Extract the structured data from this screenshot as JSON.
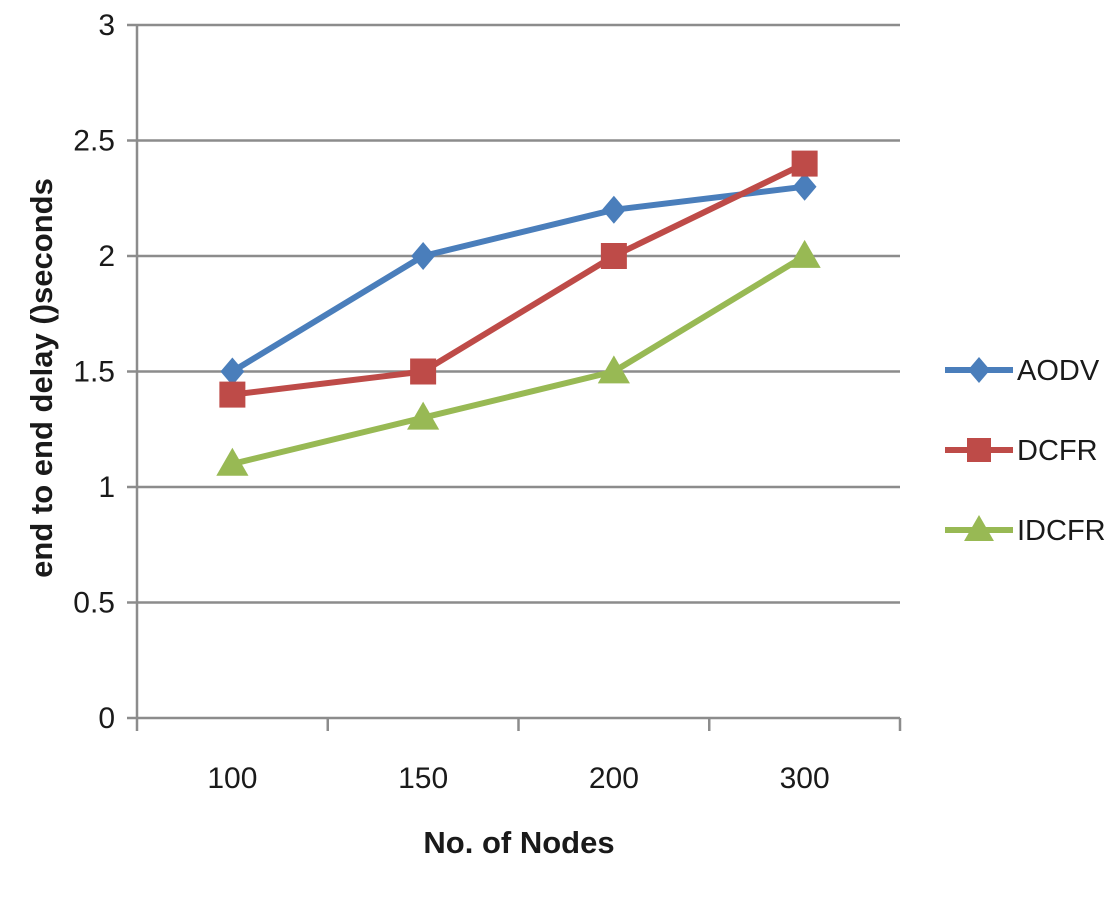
{
  "chart_data": {
    "type": "line",
    "categories": [
      "100",
      "150",
      "200",
      "300"
    ],
    "series": [
      {
        "name": "AODV",
        "values": [
          1.5,
          2.0,
          2.2,
          2.3
        ],
        "color": "#4a7ebb",
        "marker": "diamond"
      },
      {
        "name": "DCFR",
        "values": [
          1.4,
          1.5,
          2.0,
          2.4
        ],
        "color": "#be4b48",
        "marker": "square"
      },
      {
        "name": "IDCFR",
        "values": [
          1.1,
          1.3,
          1.5,
          2.0
        ],
        "color": "#98b954",
        "marker": "triangle"
      }
    ],
    "xlabel": "No. of Nodes",
    "ylabel": "end to end delay ()seconds",
    "ylim": [
      0,
      3
    ],
    "yticks": [
      "0",
      "0.5",
      "1",
      "1.5",
      "2",
      "2.5",
      "3"
    ],
    "grid": true,
    "legend_position": "right"
  }
}
